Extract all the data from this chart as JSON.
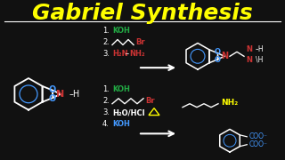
{
  "title": "Gabriel Synthesis",
  "title_color": "#FFFF00",
  "title_fontsize": 18,
  "bg_color": "#111111",
  "line_color": "#FFFFFF",
  "N_color": "#CC3333",
  "O_color": "#4499FF",
  "green_color": "#22AA44",
  "red_color": "#CC3333",
  "blue_color": "#4499FF",
  "yellow_color": "#FFFF00",
  "white_color": "#FFFFFF",
  "nh2_color": "#FFFF00",
  "steps_top": [
    {
      "num": "1.",
      "text": "KOH",
      "text_color": "#22AA44"
    },
    {
      "num": "2.",
      "text": "Br",
      "text_color": "#CC3333"
    },
    {
      "num": "3.",
      "text": "H₂N–NH₂",
      "text_color": "#CC3333"
    }
  ],
  "steps_bottom": [
    {
      "num": "1.",
      "text": "KOH",
      "text_color": "#22AA44"
    },
    {
      "num": "2.",
      "text": "Br",
      "text_color": "#CC3333"
    },
    {
      "num": "3.",
      "text": "H₂O/HCl",
      "text_color": "#FFFFFF"
    },
    {
      "num": "4.",
      "text": "KOH",
      "text_color": "#4499FF"
    }
  ]
}
